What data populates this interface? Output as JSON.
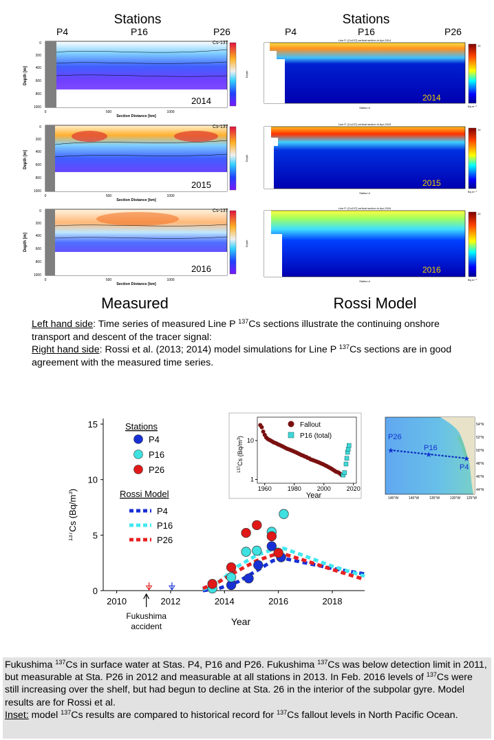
{
  "top": {
    "left_header": "Stations",
    "right_header": "Stations",
    "station_labels": [
      "P4",
      "P16",
      "P26"
    ],
    "measured_label": "Measured",
    "rossi_label": "Rossi Model",
    "years": [
      "2014",
      "2015",
      "2016"
    ],
    "measured_panel_tag": "Cs-137",
    "measured_xlabel": "Section Distance [km]",
    "measured_ylabel": "Depth [m]",
    "measured_yticks": [
      "0",
      "200",
      "400",
      "600",
      "800",
      "1000"
    ],
    "measured_xticks": [
      "0",
      "500",
      "1000"
    ],
    "model_titles": [
      "Line P: [Cs137] vertical section in Apr-2014",
      "Line P: [Cs137] vertical section in Apr-2015",
      "Line P: [Cs137] vertical section in Apr-2016"
    ],
    "model_xlabel": "Station #",
    "model_ylabel": "Depth",
    "model_units": "Bq m⁻³",
    "colorbar_max": "10",
    "colorbar_min": "0"
  },
  "caption1": {
    "left_label": "Left hand side",
    "left_text_a": ": Time series of measured Line P ",
    "sup1": "137",
    "left_text_b": "Cs sections illustrate the continuing onshore transport and descent of the tracer signal:",
    "right_label": "Right hand side",
    "right_text_a": ": Rossi et al. (2013; 2014) model simulations for Line P ",
    "sup2": "137",
    "right_text_b": "Cs sections are in good agreement with the measured time series."
  },
  "main_chart": {
    "ylabel_pre": "137",
    "ylabel_post": "Cs (Bq/m",
    "ylabel_sup": "3",
    "ylabel_close": ")",
    "xlabel": "Year",
    "annotation": "Fukushima accident",
    "annotation_line1": "Fukushima",
    "annotation_line2": "accident",
    "stations_legend_title": "Stations",
    "model_legend_title": "Rossi Model"
  },
  "chart_data": [
    {
      "type": "scatter",
      "xlabel": "Year",
      "ylabel": "137Cs (Bq/m3)",
      "xlim": [
        2009.5,
        2019.2
      ],
      "ylim": [
        0,
        15.5
      ],
      "xticks": [
        2010,
        2012,
        2014,
        2016,
        2018
      ],
      "yticks": [
        0,
        5,
        10,
        15
      ],
      "legend_stations_title": "Stations",
      "legend_model_title": "Rossi Model",
      "series": [
        {
          "name": "P4",
          "kind": "measured",
          "color": "#1730d6",
          "x": [
            2014.25,
            2014.9,
            2015.25,
            2015.75,
            2016.1
          ],
          "y": [
            0.5,
            1.1,
            2.3,
            4.0,
            3.0
          ]
        },
        {
          "name": "P16",
          "kind": "measured",
          "color": "#3fe0e0",
          "x": [
            2013.55,
            2014.25,
            2014.8,
            2015.2,
            2015.75,
            2016.2
          ],
          "y": [
            0.2,
            1.2,
            3.5,
            3.6,
            5.3,
            6.9
          ]
        },
        {
          "name": "P26",
          "kind": "measured",
          "color": "#e01818",
          "x": [
            2013.55,
            2014.25,
            2014.8,
            2015.2,
            2015.75,
            2016.0
          ],
          "y": [
            0.6,
            2.1,
            5.2,
            5.9,
            4.9,
            3.4
          ]
        },
        {
          "name": "P4",
          "kind": "model",
          "color": "#1730d6",
          "x": [
            2013.2,
            2013.8,
            2014.5,
            2015.2,
            2015.8,
            2016.2,
            2017.0,
            2018.0,
            2019.2
          ],
          "y": [
            0.0,
            0.2,
            0.8,
            1.8,
            2.7,
            2.9,
            2.5,
            2.0,
            1.5
          ]
        },
        {
          "name": "P16",
          "kind": "model",
          "color": "#40e8f0",
          "x": [
            2013.2,
            2013.8,
            2014.5,
            2015.2,
            2015.8,
            2016.2,
            2017.0,
            2018.0,
            2019.2
          ],
          "y": [
            0.1,
            0.8,
            2.2,
            3.2,
            3.7,
            3.8,
            3.1,
            2.2,
            1.3
          ]
        },
        {
          "name": "P26",
          "kind": "model",
          "color": "#e82020",
          "x": [
            2013.2,
            2013.8,
            2014.5,
            2015.2,
            2015.8,
            2016.2,
            2017.0,
            2018.0,
            2019.2
          ],
          "y": [
            0.2,
            0.8,
            1.8,
            2.7,
            3.2,
            3.3,
            2.7,
            1.9,
            1.0
          ]
        }
      ],
      "detection_limit_markers": [
        {
          "x": 2011.2,
          "color": "#e01818"
        },
        {
          "x": 2012.05,
          "color": "#1730d6"
        }
      ],
      "annotation": {
        "x": 2011.1,
        "text": "Fukushima accident"
      }
    },
    {
      "type": "scatter",
      "inset": true,
      "xlabel": "Year",
      "ylabel": "137Cs (Bq/m3)",
      "yscale": "log",
      "xlim": [
        1955,
        2022
      ],
      "ylim": [
        0.8,
        40
      ],
      "xticks": [
        1960,
        1980,
        2000,
        2020
      ],
      "yticks": [
        1,
        10
      ],
      "series": [
        {
          "name": "Fallout",
          "color": "#7a1010",
          "x": [
            1957,
            1958,
            1959,
            1960,
            1961,
            1962,
            1963,
            1964,
            1965,
            1966,
            1967,
            1968,
            1969,
            1970,
            1971,
            1972,
            1973,
            1974,
            1975,
            1976,
            1977,
            1978,
            1979,
            1980,
            1981,
            1982,
            1983,
            1984,
            1985,
            1986,
            1987,
            1988,
            1989,
            1990,
            1991,
            1992,
            1993,
            1994,
            1995,
            1996,
            1997,
            1998,
            1999,
            2000,
            2001,
            2002,
            2003,
            2004,
            2005,
            2006,
            2007,
            2008,
            2009,
            2010,
            2011,
            2012
          ],
          "y": [
            25,
            22,
            17,
            14,
            12,
            11,
            10.5,
            10,
            9.5,
            9,
            8.7,
            8.4,
            8,
            7.7,
            7.4,
            7.1,
            6.8,
            6.5,
            6.2,
            6,
            5.8,
            5.6,
            5.4,
            5.2,
            5,
            4.8,
            4.6,
            4.4,
            4.2,
            4.1,
            3.9,
            3.8,
            3.6,
            3.5,
            3.3,
            3.2,
            3.1,
            3,
            2.9,
            2.8,
            2.7,
            2.6,
            2.5,
            2.4,
            2.3,
            2.2,
            2.1,
            2.0,
            1.9,
            1.8,
            1.7,
            1.6,
            1.55,
            1.5,
            1.4,
            1.3
          ]
        },
        {
          "name": "P16 (total)",
          "color": "#40d8d8",
          "x": [
            2013,
            2014,
            2015,
            2015.5,
            2016,
            2016.5,
            2017
          ],
          "y": [
            1.3,
            1.5,
            2.5,
            3.5,
            5.0,
            6.0,
            7.5
          ]
        }
      ]
    }
  ],
  "map": {
    "lat_labels": [
      "54°N",
      "52°N",
      "50°N",
      "48°N",
      "46°N",
      "44°N"
    ],
    "lon_labels": [
      "145°W",
      "140°W",
      "135°W",
      "130°W",
      "125°W"
    ],
    "station_labels": [
      "P26",
      "P16",
      "P4"
    ]
  },
  "caption2": {
    "t1": "Fukushima ",
    "s1": "137",
    "t2": "Cs in surface water at Stas. P4, P16 and P26. Fukushima ",
    "s2": "137",
    "t3": "Cs was below detection limit in 2011, but measurable at Sta. P26 in 2012 and measurable at all stations in 2013. In Feb. 2016 levels of ",
    "s3": "137",
    "t4": "Cs were still increasing over the shelf, but had begun to decline at Sta. 26 in the interior of the subpolar gyre. Model results are for Rossi et al. ",
    "inset_label": "Inset:",
    "t5": " model ",
    "s4": "137",
    "t6": "Cs results are compared to historical record for ",
    "s5": "137",
    "t7": "Cs fallout levels in North Pacific Ocean."
  }
}
